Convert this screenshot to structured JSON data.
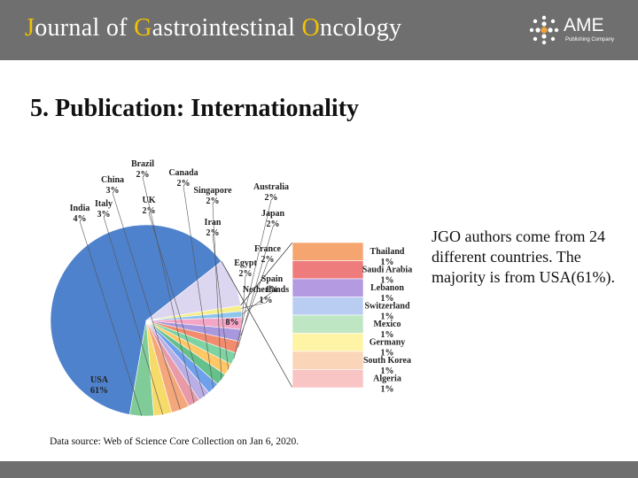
{
  "header": {
    "journal_title_segments": [
      {
        "text": "J",
        "highlight": true
      },
      {
        "text": "ournal of ",
        "highlight": false
      },
      {
        "text": "G",
        "highlight": true
      },
      {
        "text": "astrointestinal ",
        "highlight": false
      },
      {
        "text": "O",
        "highlight": true
      },
      {
        "text": "ncology",
        "highlight": false
      }
    ],
    "highlight_color": "#f2c200",
    "background_color": "#6f6f6f",
    "logo_text": "AME",
    "logo_subtext": "Publishing Company"
  },
  "slide": {
    "title": "5. Publication: Internationality",
    "description": "JGO authors come from 24 different countries. The majority is from USA(61%).",
    "source": "Data source: Web of Science Core Collection on Jan 6, 2020."
  },
  "chart_data": {
    "type": "pie",
    "title": "",
    "style": "pie-of-pie",
    "main_slices": [
      {
        "label": "USA",
        "value": 61,
        "text": "61%",
        "color": "#4f82cc"
      },
      {
        "label": "",
        "value": 8,
        "text": "8%",
        "color": "#ddd6f0"
      },
      {
        "label": "Netherlands",
        "value": 1,
        "text": "1%",
        "color": "#f5ee8a"
      },
      {
        "label": "Spain",
        "value": 1,
        "text": "1%",
        "color": "#8dc5ee"
      },
      {
        "label": "Egypt",
        "value": 2,
        "text": "2%",
        "color": "#f4a6c6"
      },
      {
        "label": "France",
        "value": 2,
        "text": "2%",
        "color": "#a898dd"
      },
      {
        "label": "Japan",
        "value": 2,
        "text": "2%",
        "color": "#f28c6e"
      },
      {
        "label": "Australia",
        "value": 2,
        "text": "2%",
        "color": "#7dd3a2"
      },
      {
        "label": "Iran",
        "value": 2,
        "text": "2%",
        "color": "#ffc766"
      },
      {
        "label": "Singapore",
        "value": 2,
        "text": "2%",
        "color": "#66c08a"
      },
      {
        "label": "Canada",
        "value": 2,
        "text": "2%",
        "color": "#6fa0ec"
      },
      {
        "label": "UK",
        "value": 2,
        "text": "2%",
        "color": "#b9aee6"
      },
      {
        "label": "Brazil",
        "value": 2,
        "text": "2%",
        "color": "#e89aa8"
      },
      {
        "label": "China",
        "value": 3,
        "text": "3%",
        "color": "#f4a77a"
      },
      {
        "label": "Italy",
        "value": 3,
        "text": "3%",
        "color": "#f7db6a"
      },
      {
        "label": "India",
        "value": 4,
        "text": "4%",
        "color": "#80cc98"
      }
    ],
    "secondary_bar": [
      {
        "label": "Thailand",
        "value": 1,
        "text": "1%",
        "color": "#f5a670"
      },
      {
        "label": "Saudi Arabia",
        "value": 1,
        "text": "1%",
        "color": "#ef7c7c"
      },
      {
        "label": "Lebanon",
        "value": 1,
        "text": "1%",
        "color": "#b49ae0"
      },
      {
        "label": "Switzerland",
        "value": 1,
        "text": "1%",
        "color": "#b9cdf3"
      },
      {
        "label": "Mexico",
        "value": 1,
        "text": "1%",
        "color": "#bfe6c3"
      },
      {
        "label": "Germany",
        "value": 1,
        "text": "1%",
        "color": "#fff3a6"
      },
      {
        "label": "South Korea",
        "value": 1,
        "text": "1%",
        "color": "#fbd5b8"
      },
      {
        "label": "Algeria",
        "value": 1,
        "text": "1%",
        "color": "#f9c4c4"
      }
    ],
    "legend": "none"
  }
}
